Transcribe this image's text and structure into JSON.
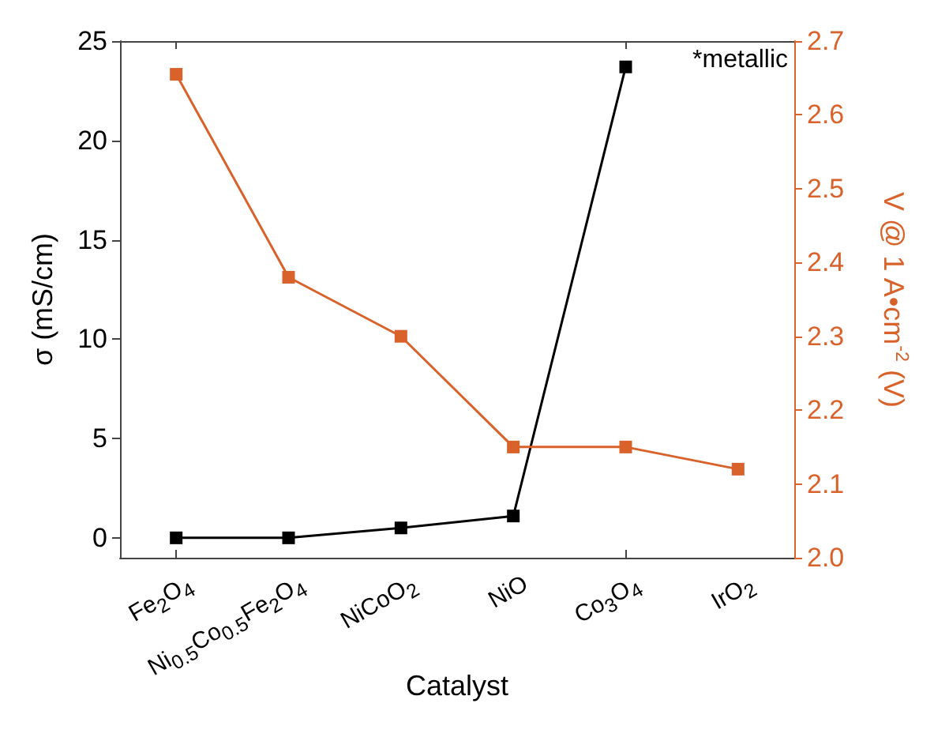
{
  "chart_data": {
    "type": "line",
    "xlabel": "Catalyst",
    "ylabel": "σ (mS/cm)",
    "y2label": "V @ 1 A•cm$^{-2}$ (V)",
    "categories": [
      "Fe$_{2}$O$_{4}$",
      "Ni$_{0.5}$Co$_{0.5}$Fe$_{2}$O$_{4}$",
      "NiCoO$_{2}$",
      "NiO",
      "Co$_{3}$O$_{4}$",
      "IrO$_{2}$"
    ],
    "series": [
      {
        "color": "#000000",
        "values": [
          0,
          0,
          0.5,
          1.1,
          23.7,
          null
        ]
      },
      {
        "color": "#d9622b",
        "axis": "y2",
        "values": [
          2.655,
          2.38,
          2.3,
          2.15,
          2.15,
          2.12
        ]
      }
    ],
    "ylim": [
      -1,
      25
    ],
    "yticks": [
      0,
      5,
      10,
      15,
      20,
      25
    ],
    "y2lim": [
      2.0,
      2.7
    ],
    "y2ticks": [
      {
        "value": 2,
        "label": "2.0"
      },
      2.1,
      2.2,
      2.3,
      2.4,
      2.5,
      2.6,
      2.7
    ],
    "annotations": [
      "*metallic"
    ],
    "marker": "square",
    "line_style": "solid",
    "grid": false
  }
}
